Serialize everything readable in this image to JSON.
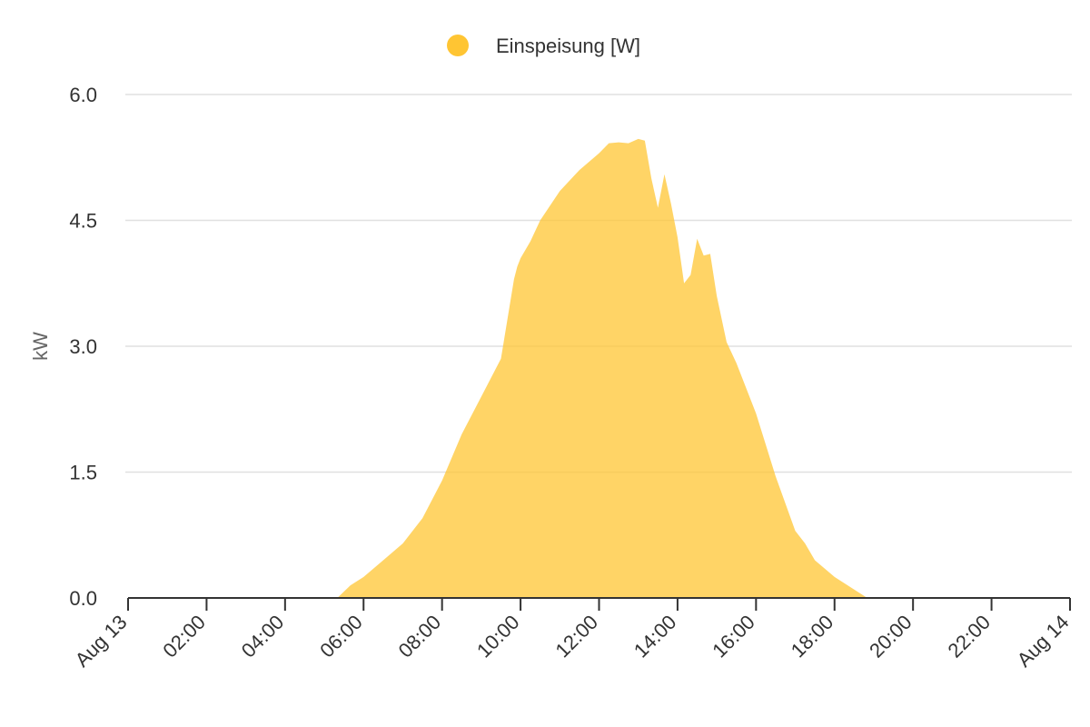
{
  "chart_data": {
    "type": "area",
    "xlabel": "",
    "ylabel": "kW",
    "ylim": [
      0,
      6.0
    ],
    "xlim": [
      "Aug 13 00:00",
      "Aug 14 00:00"
    ],
    "grid": true,
    "legend_position": "top-center",
    "y_ticks": [
      "0.0",
      "1.5",
      "3.0",
      "4.5",
      "6.0"
    ],
    "x_ticks": [
      "Aug 13",
      "02:00",
      "04:00",
      "06:00",
      "08:00",
      "10:00",
      "12:00",
      "14:00",
      "16:00",
      "18:00",
      "20:00",
      "22:00",
      "Aug 14"
    ],
    "series": [
      {
        "name": "Einspeisung [W]",
        "color": "#FFC533",
        "x": [
          "05:20",
          "05:40",
          "06:00",
          "06:30",
          "07:00",
          "07:30",
          "08:00",
          "08:30",
          "09:00",
          "09:30",
          "09:50",
          "09:55",
          "10:00",
          "10:15",
          "10:30",
          "11:00",
          "11:30",
          "12:00",
          "12:15",
          "12:30",
          "12:45",
          "13:00",
          "13:10",
          "13:20",
          "13:30",
          "13:40",
          "13:50",
          "14:00",
          "14:10",
          "14:20",
          "14:30",
          "14:40",
          "14:50",
          "15:00",
          "15:15",
          "15:30",
          "16:00",
          "16:30",
          "17:00",
          "17:15",
          "17:30",
          "18:00",
          "18:30",
          "18:50"
        ],
        "values": [
          0.0,
          0.15,
          0.25,
          0.45,
          0.65,
          0.95,
          1.4,
          1.95,
          2.4,
          2.85,
          3.8,
          3.95,
          4.05,
          4.25,
          4.5,
          4.85,
          5.1,
          5.3,
          5.42,
          5.43,
          5.42,
          5.47,
          5.45,
          5.0,
          4.65,
          5.05,
          4.7,
          4.3,
          3.75,
          3.85,
          4.28,
          4.08,
          4.1,
          3.6,
          3.05,
          2.8,
          2.2,
          1.45,
          0.8,
          0.65,
          0.45,
          0.25,
          0.1,
          0.0
        ]
      }
    ]
  }
}
